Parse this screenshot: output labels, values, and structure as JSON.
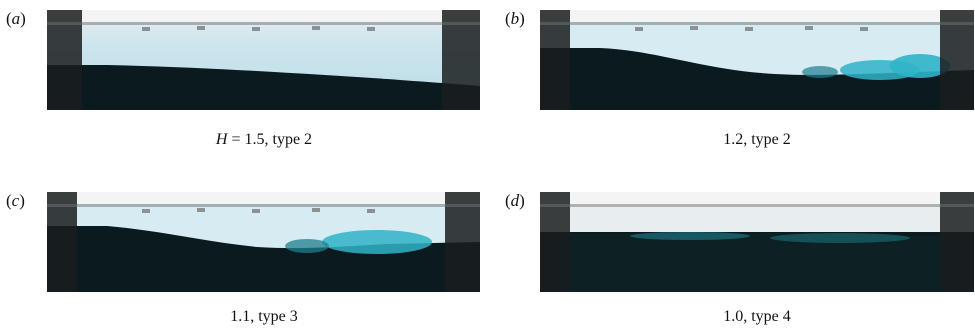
{
  "figure": {
    "panels": [
      {
        "id": "a",
        "label_letter": "a",
        "caption_var": "H",
        "caption_rest": " = 1.5,  type 2"
      },
      {
        "id": "b",
        "label_letter": "b",
        "caption_var": "",
        "caption_rest": "1.2, type 2"
      },
      {
        "id": "c",
        "label_letter": "c",
        "caption_var": "",
        "caption_rest": "1.1, type 3"
      },
      {
        "id": "d",
        "label_letter": "d",
        "caption_var": "",
        "caption_rest": "1.0, type 4"
      }
    ],
    "colors": {
      "tank_fluid_light": "#cfe7ee",
      "dense_fluid": "#0b1a1e",
      "mixing_dye": "#2fb4c8",
      "frame_dark": "#1a1d1f"
    }
  }
}
